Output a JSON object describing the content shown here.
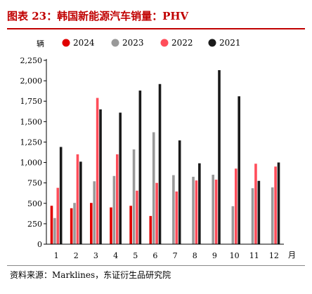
{
  "title": "图表 23：韩国新能源汽车销量：PHV",
  "source": "资料来源：Marklines，东证衍生品研究院",
  "chart_data": {
    "type": "bar",
    "ylabel": "辆",
    "xlabel": "月",
    "ylim": [
      0,
      2250
    ],
    "yticks": [
      "0",
      "250",
      "500",
      "750",
      "1,000",
      "1,250",
      "1,500",
      "1,750",
      "2,000",
      "2,250"
    ],
    "categories": [
      "1",
      "2",
      "3",
      "4",
      "5",
      "6",
      "7",
      "8",
      "9",
      "10",
      "11",
      "12"
    ],
    "legend_position": "top",
    "series": [
      {
        "name": "2024",
        "color": "#e00000",
        "values": [
          470,
          440,
          505,
          450,
          470,
          345,
          null,
          null,
          null,
          null,
          null,
          null
        ]
      },
      {
        "name": "2023",
        "color": "#999999",
        "values": [
          320,
          505,
          770,
          835,
          1160,
          1370,
          845,
          825,
          850,
          465,
          685,
          695
        ]
      },
      {
        "name": "2022",
        "color": "#ff4d5a",
        "values": [
          690,
          1100,
          1790,
          1100,
          655,
          750,
          645,
          780,
          790,
          925,
          985,
          950
        ]
      },
      {
        "name": "2021",
        "color": "#1a1a1a",
        "values": [
          1190,
          1010,
          1650,
          1610,
          1880,
          1960,
          1270,
          990,
          2130,
          1810,
          775,
          1000
        ]
      }
    ]
  }
}
